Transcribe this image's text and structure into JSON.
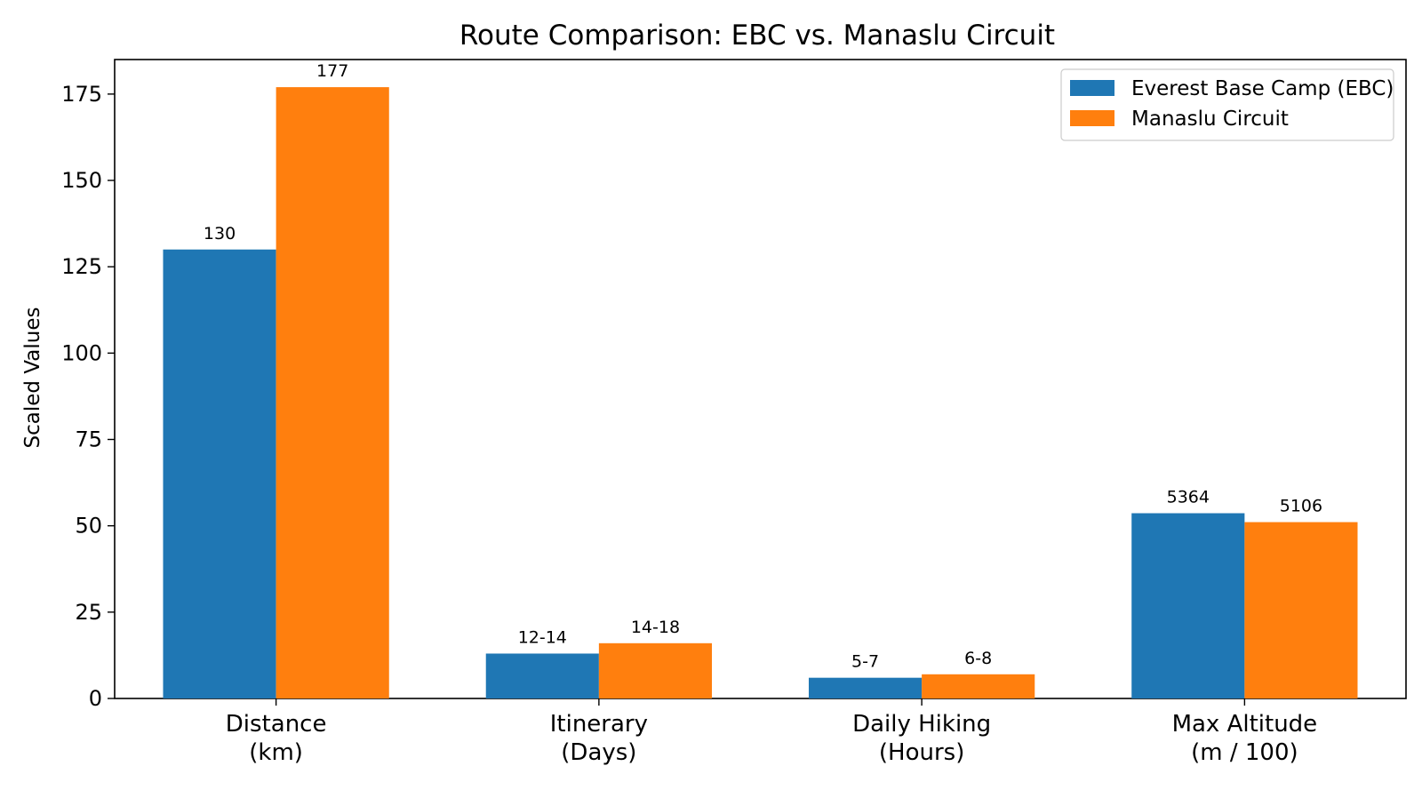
{
  "chart_data": {
    "type": "bar",
    "title": "Route Comparison: EBC vs. Manaslu Circuit",
    "xlabel": "",
    "ylabel": "Scaled Values",
    "ylim": [
      0,
      185
    ],
    "yticks": [
      0,
      25,
      50,
      75,
      100,
      125,
      150,
      175
    ],
    "categories": [
      [
        "Distance",
        "(km)"
      ],
      [
        "Itinerary",
        "(Days)"
      ],
      [
        "Daily Hiking",
        "(Hours)"
      ],
      [
        "Max Altitude",
        "(m / 100)"
      ]
    ],
    "series": [
      {
        "name": "Everest Base Camp (EBC)",
        "color": "#1f77b4",
        "values": [
          130,
          13,
          6,
          53.64
        ],
        "labels": [
          "130",
          "12-14",
          "5-7",
          "5364"
        ]
      },
      {
        "name": "Manaslu Circuit",
        "color": "#ff7f0e",
        "values": [
          177,
          16,
          7,
          51.06
        ],
        "labels": [
          "177",
          "14-18",
          "6-8",
          "5106"
        ]
      }
    ],
    "grid": false,
    "legend_position": "top-right"
  }
}
